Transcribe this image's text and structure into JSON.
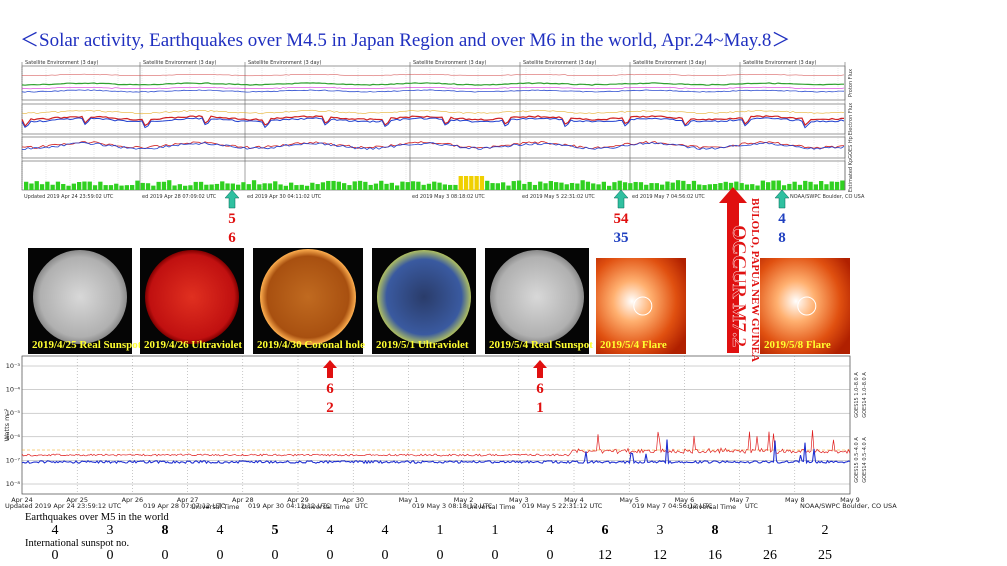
{
  "title": "＜Solar activity, Earthquakes over M4.5 in Japan Region and over M6 in the world, Apr.24~May.8＞",
  "top_plot": {
    "headers": [
      "Satellite Environment (3 day)",
      "Satellite Environment (3 day)",
      "Satellite Environment (3 day)",
      "Satellite Environment (3 day)",
      "Satellite Environment (3 day)",
      "Satellite Environment (3 day)",
      "Satellite Environment (3 day)"
    ],
    "updated": [
      "Updated 2019 Apr 24 23:59:02 UTC",
      "ed 2019 Apr 28 07:09:02 UTC",
      "ed 2019 Apr 30 04:11:02 UTC",
      "ed 2019 May 3 08:18:02 UTC",
      "ed 2019 May 5 22:31:02 UTC",
      "ed 2019 May 7 04:56:02 UTC",
      "NOAA/SWPC Boulder, CO USA"
    ],
    "panel_labels": [
      "Proton Flux",
      "Electron Flux",
      "GOES Hp",
      "Estimated Kp"
    ]
  },
  "photos": [
    {
      "label": "2019/4/25 Real Sunspot"
    },
    {
      "label": "2019/4/26 Ultraviolet"
    },
    {
      "label": "2019/4/30 Coronal hole"
    },
    {
      "label": "2019/5/1 Ultraviolet"
    },
    {
      "label": "2019/5/4 Real Sunspot"
    },
    {
      "label": "2019/5/4 Flare"
    },
    {
      "label": "2019/5/8 Flare"
    }
  ],
  "annotations": {
    "green": [
      {
        "top": "5",
        "bottom": "6"
      },
      {
        "top": "54",
        "bottom": "35"
      },
      {
        "top": "4",
        "bottom": "8"
      }
    ],
    "red": [
      {
        "top": "6",
        "bottom": "2"
      },
      {
        "top": "6",
        "bottom": "1"
      }
    ],
    "big_event": "OCCUR M7.2",
    "big_place": "BULOLO, PAPUA NEW GUINEA"
  },
  "bottom_plot": {
    "y_label": "Watts m⁻²",
    "yticks": [
      "10⁻³",
      "10⁻⁴",
      "10⁻⁵",
      "10⁻⁶",
      "10⁻⁷",
      "10⁻⁸"
    ],
    "x_labels": [
      "Apr 24",
      "Apr 25",
      "Apr 26",
      "Apr 27",
      "Apr 28",
      "Apr 29",
      "Apr 30",
      "May 1",
      "May 2",
      "May 3",
      "May 4",
      "May 5",
      "May 6",
      "May 7",
      "May 8",
      "May 9"
    ],
    "x_axis_title": "Universal Time",
    "updated": [
      "Updated 2019 Apr 24 23:59:12 UTC",
      "019 Apr 28 07:07:12 UTC",
      "019 Apr 30 04:12:12 UTC",
      "UTC",
      "019 May 3 08:18:12 UTC",
      "019 May 5 22:31:12 UTC",
      "019 May 7 04:56:12 UTC",
      "UTC",
      "NOAA/SWPC Boulder, CO USA"
    ],
    "right_labels": [
      "GOES15 1.0–8.0 A",
      "GOES14 1.0–8.0 A",
      "GOES15 0.5–4.0 A",
      "GOES14 0.5–4.0 A"
    ],
    "end_label": "0000 UTC"
  },
  "table": {
    "earthquakes_label": "Earthquakes over M5 in the world",
    "earthquakes": [
      {
        "value": 4,
        "color": "#000000"
      },
      {
        "value": 3,
        "color": "#000000"
      },
      {
        "value": 8,
        "color": "#e00000"
      },
      {
        "value": 4,
        "color": "#000000"
      },
      {
        "value": 5,
        "color": "#e00000"
      },
      {
        "value": 4,
        "color": "#000000"
      },
      {
        "value": 4,
        "color": "#000000"
      },
      {
        "value": 1,
        "color": "#000000"
      },
      {
        "value": 1,
        "color": "#000000"
      },
      {
        "value": 4,
        "color": "#000000"
      },
      {
        "value": 6,
        "color": "#e00000"
      },
      {
        "value": 3,
        "color": "#000000"
      },
      {
        "value": 8,
        "color": "#e00000"
      },
      {
        "value": 1,
        "color": "#000000"
      },
      {
        "value": 2,
        "color": "#000000"
      }
    ],
    "sunspot_label": "International sunspot no.",
    "sunspots": [
      0,
      0,
      0,
      0,
      0,
      0,
      0,
      0,
      0,
      0,
      12,
      12,
      16,
      26,
      25
    ]
  }
}
